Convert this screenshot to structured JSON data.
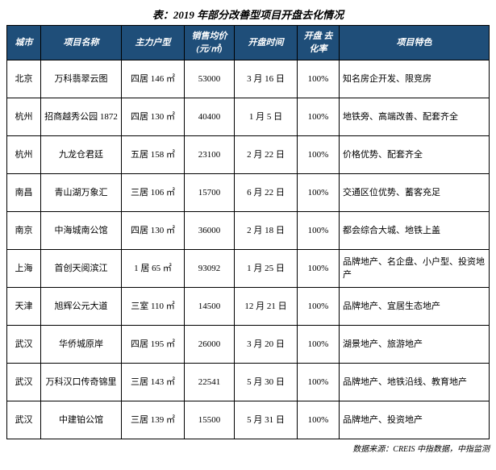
{
  "title": "表：2019 年部分改善型项目开盘去化情况",
  "headers": {
    "city": "城市",
    "name": "项目名称",
    "type": "主力户型",
    "price": "销售均价\n(元/㎡)",
    "date": "开盘时间",
    "rate": "开盘\n去化率",
    "feature": "项目特色"
  },
  "rows": [
    {
      "city": "北京",
      "name": "万科翡翠云图",
      "type": "四居 146 ㎡",
      "price": "53000",
      "date": "3 月 16 日",
      "rate": "100%",
      "feature": "知名房企开发、限竞房"
    },
    {
      "city": "杭州",
      "name": "招商越秀公园 1872",
      "type": "四居 130 ㎡",
      "price": "40400",
      "date": "1 月 5 日",
      "rate": "100%",
      "feature": "地铁旁、高端改善、配套齐全"
    },
    {
      "city": "杭州",
      "name": "九龙仓君廷",
      "type": "五居 158 ㎡",
      "price": "23100",
      "date": "2 月 22 日",
      "rate": "100%",
      "feature": "价格优势、配套齐全"
    },
    {
      "city": "南昌",
      "name": "青山湖万象汇",
      "type": "三居 106 ㎡",
      "price": "15700",
      "date": "6 月 22 日",
      "rate": "100%",
      "feature": "交通区位优势、蓄客充足"
    },
    {
      "city": "南京",
      "name": "中海城南公馆",
      "type": "四居 130 ㎡",
      "price": "36000",
      "date": "2 月 18 日",
      "rate": "100%",
      "feature": "都会综合大城、地铁上盖"
    },
    {
      "city": "上海",
      "name": "首创天阅滨江",
      "type": "1 居 65 ㎡",
      "price": "93092",
      "date": "1 月 25 日",
      "rate": "100%",
      "feature": "品牌地产、名企盘、小户型、投资地产"
    },
    {
      "city": "天津",
      "name": "旭辉公元大道",
      "type": "三室 110 ㎡",
      "price": "14500",
      "date": "12 月 21 日",
      "rate": "100%",
      "feature": "品牌地产、宜居生态地产"
    },
    {
      "city": "武汉",
      "name": "华侨城原岸",
      "type": "四居 195 ㎡",
      "price": "26000",
      "date": "3 月 20 日",
      "rate": "100%",
      "feature": "湖景地产、旅游地产"
    },
    {
      "city": "武汉",
      "name": "万科汉口传奇锦里",
      "type": "三居 143 ㎡",
      "price": "22541",
      "date": "5 月 30 日",
      "rate": "100%",
      "feature": "品牌地产、地铁沿线、教育地产"
    },
    {
      "city": "武汉",
      "name": "中建铂公馆",
      "type": "三居 139 ㎡",
      "price": "15500",
      "date": "5 月 31 日",
      "rate": "100%",
      "feature": "品牌地产、投资地产"
    }
  ],
  "source": "数据来源：CREIS 中指数据，中指监测",
  "style": {
    "header_bg": "#1f4e79",
    "header_fg": "#ffffff",
    "border_color": "#000000",
    "body_font": "SimSun",
    "title_fontsize": 13,
    "cell_fontsize": 11
  }
}
